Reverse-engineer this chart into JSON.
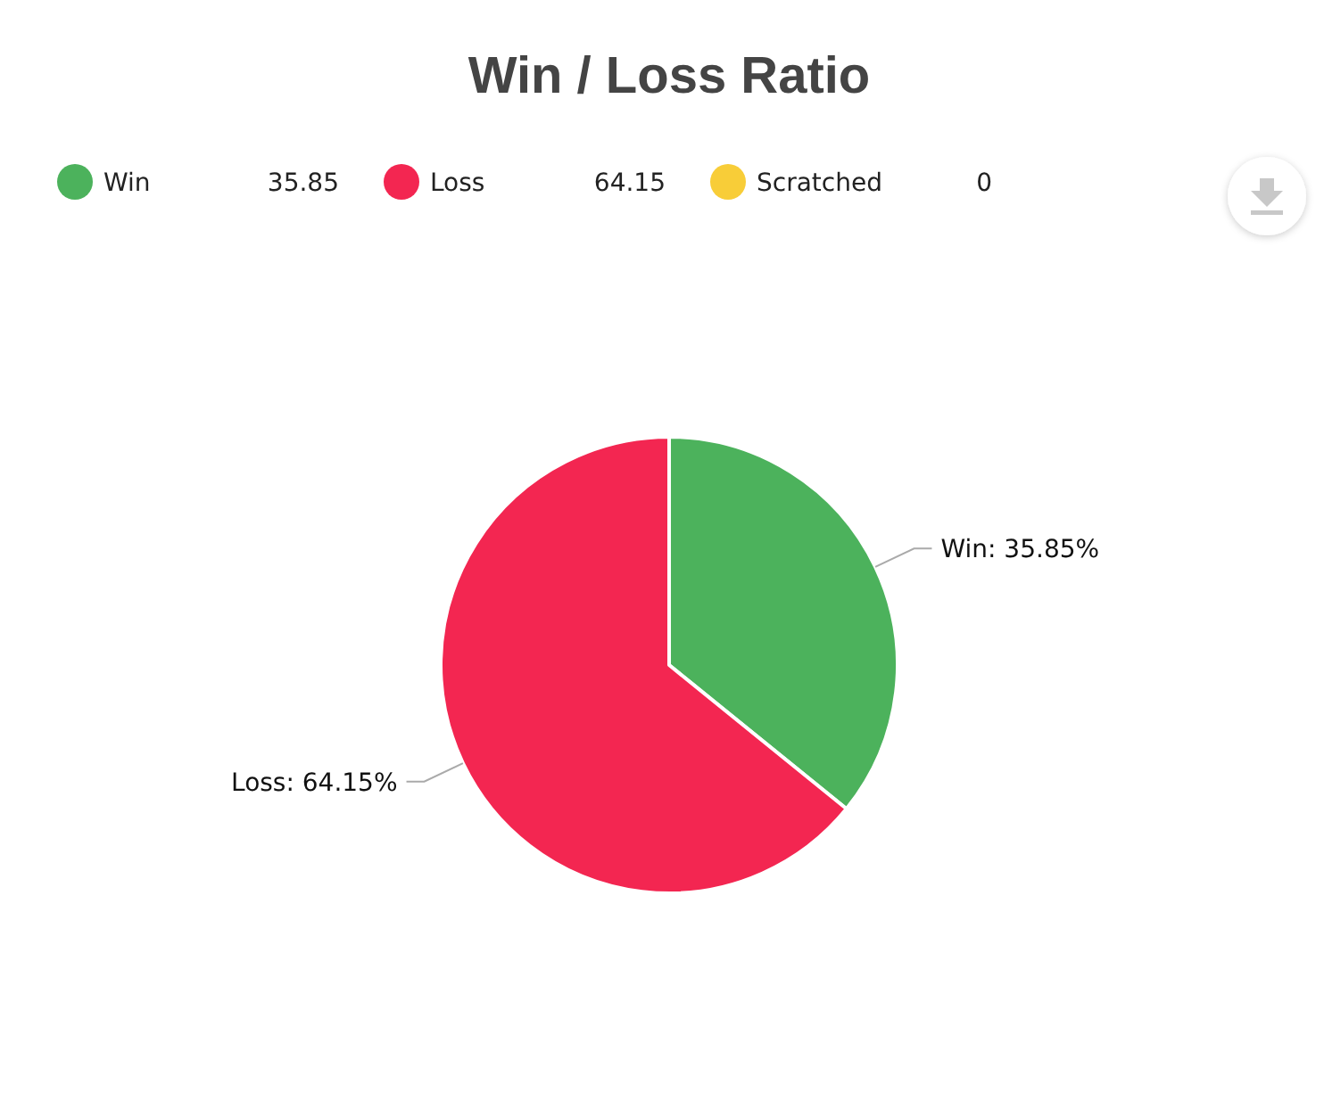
{
  "chart_data": {
    "type": "pie",
    "title": "Win / Loss Ratio",
    "categories": [
      "Win",
      "Loss",
      "Scratched"
    ],
    "values": [
      35.85,
      64.15,
      0
    ],
    "colors": [
      "#4cb25c",
      "#f32651",
      "#f8cd38"
    ],
    "value_labels": [
      "Win: 35.85%",
      "Loss: 64.15%",
      null
    ],
    "annotations": [
      "35.85",
      "64.15",
      "0"
    ],
    "legend": "top"
  }
}
